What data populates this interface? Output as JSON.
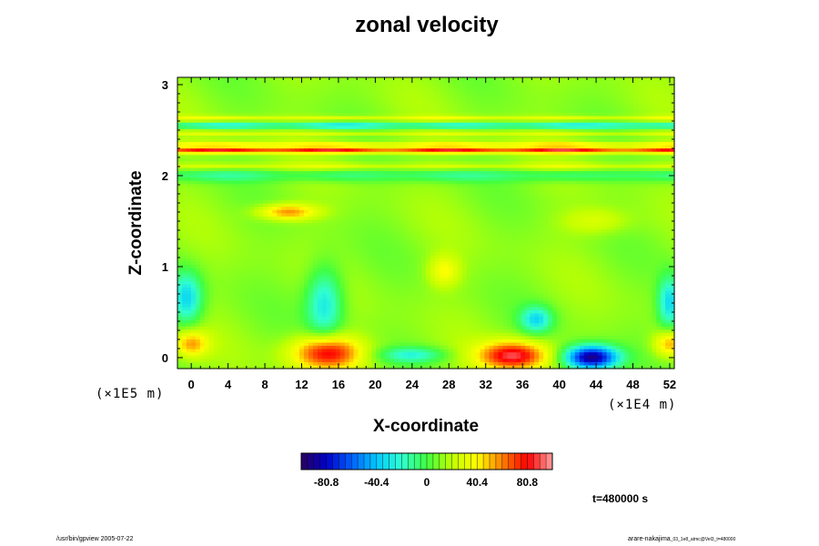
{
  "chart_data": {
    "type": "heatmap",
    "title": "zonal velocity",
    "xlabel": "X-coordinate",
    "ylabel": "Z-coordinate",
    "x_unit": "(×1E4 m)",
    "z_unit": "(×1E5 m)",
    "xlim": [
      -1.5,
      52.5
    ],
    "zlim": [
      -0.12,
      3.08
    ],
    "x_ticks": [
      "0",
      "4",
      "8",
      "12",
      "16",
      "20",
      "24",
      "28",
      "32",
      "36",
      "40",
      "44",
      "48",
      "52"
    ],
    "z_ticks": [
      "0",
      "1",
      "2",
      "3"
    ],
    "colorbar": {
      "ticks": [
        "-80.8",
        "-40.4",
        "0",
        "40.4",
        "80.8"
      ],
      "tick_values": [
        -80.8,
        -40.4,
        0,
        40.4,
        80.8
      ],
      "range": [
        -101,
        101
      ],
      "colors": [
        "#2a0060",
        "#0000c8",
        "#0060ff",
        "#00c8ff",
        "#30ffd0",
        "#40ff40",
        "#c0ff00",
        "#ffff00",
        "#ff8000",
        "#ff0000",
        "#ffa0a0"
      ]
    },
    "background_value": 12,
    "features": [
      {
        "x": 14.8,
        "z": 0.05,
        "value": 85,
        "sx": 2.6,
        "sz": 0.13
      },
      {
        "x": 35.0,
        "z": 0.02,
        "value": 90,
        "sx": 2.6,
        "sz": 0.11
      },
      {
        "x": 43.5,
        "z": 0.0,
        "value": -95,
        "sx": 2.0,
        "sz": 0.09
      },
      {
        "x": 37.5,
        "z": 0.42,
        "value": -30,
        "sx": 1.2,
        "sz": 0.1
      },
      {
        "x": 14.5,
        "z": 0.6,
        "value": -30,
        "sx": 1.4,
        "sz": 0.28
      },
      {
        "x": -0.5,
        "z": 0.65,
        "value": -35,
        "sx": 1.2,
        "sz": 0.2
      },
      {
        "x": 52.0,
        "z": 0.6,
        "value": -35,
        "sx": 0.9,
        "sz": 0.2
      },
      {
        "x": 0.0,
        "z": 0.15,
        "value": 55,
        "sx": 1.3,
        "sz": 0.1
      },
      {
        "x": 52.0,
        "z": 0.15,
        "value": 55,
        "sx": 1.2,
        "sz": 0.1
      },
      {
        "x": 24.0,
        "z": 0.03,
        "value": -20,
        "sx": 2.5,
        "sz": 0.06
      },
      {
        "x": 10.5,
        "z": 1.6,
        "value": 60,
        "sx": 2.2,
        "sz": 0.06
      },
      {
        "x": 27.5,
        "z": 0.95,
        "value": 40,
        "sx": 1.2,
        "sz": 0.12
      },
      {
        "x": 44.0,
        "z": 1.5,
        "value": 30,
        "sx": 2.5,
        "sz": 0.1
      }
    ],
    "layers": [
      {
        "z": 2.28,
        "value": 85,
        "sz": 0.025
      },
      {
        "z": 2.35,
        "value": 40,
        "sz": 0.02
      },
      {
        "z": 2.46,
        "value": 30,
        "sz": 0.02
      },
      {
        "z": 2.55,
        "value": -28,
        "sz": 0.025
      },
      {
        "z": 2.63,
        "value": 35,
        "sz": 0.02
      },
      {
        "z": 2.1,
        "value": 32,
        "sz": 0.025
      },
      {
        "z": 2.0,
        "value": -10,
        "sz": 0.05
      }
    ],
    "time_label": "t=480000 s"
  },
  "footer": {
    "left": "/usr/bin/gpview 2005-07-22",
    "right": "arare-nakajima",
    "right_small": "_03_1e8_atmc@Vel3_t=480000"
  }
}
